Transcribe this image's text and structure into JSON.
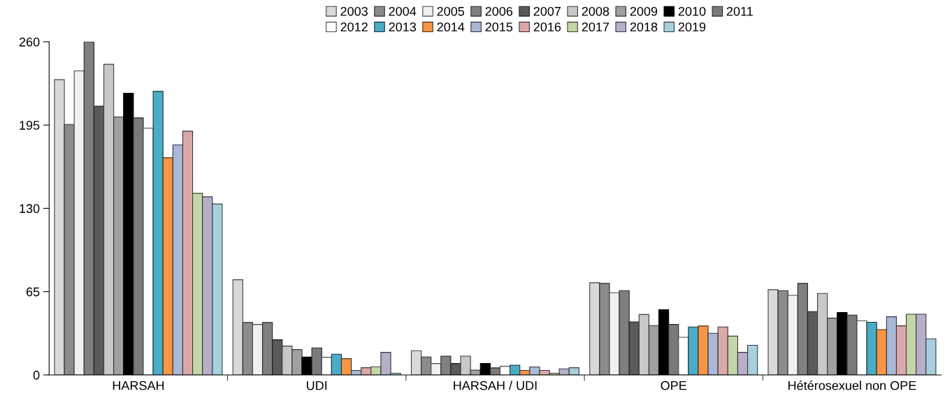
{
  "chart_data": {
    "type": "bar",
    "categories": [
      "HARSAH",
      "UDI",
      "HARSAH / UDI",
      "OPE",
      "Hétérosexuel non OPE"
    ],
    "ylim": [
      0,
      260
    ],
    "yticks": [
      0,
      65,
      130,
      195,
      260
    ],
    "grid": false,
    "legend": "top",
    "series": [
      {
        "name": "2003",
        "color": "#d9d9d9",
        "values": [
          230.4,
          74.3,
          18.9,
          72,
          66.5
        ]
      },
      {
        "name": "2004",
        "color": "#8c8c8c",
        "values": [
          195.5,
          40.9,
          14,
          71.4,
          65.8
        ]
      },
      {
        "name": "2005",
        "color": "#f0f0f0",
        "values": [
          237.3,
          39.4,
          8.9,
          64.1,
          62.1
        ]
      },
      {
        "name": "2006",
        "color": "#808080",
        "values": [
          260,
          40.9,
          14.7,
          65.8,
          71.4
        ]
      },
      {
        "name": "2007",
        "color": "#5a5a5a",
        "values": [
          209.7,
          27.4,
          8.9,
          41.4,
          49.4
        ]
      },
      {
        "name": "2008",
        "color": "#c8c8c8",
        "values": [
          242.4,
          22.5,
          14.7,
          47.2,
          63.6
        ]
      },
      {
        "name": "2009",
        "color": "#a0a0a0",
        "values": [
          201.3,
          19.8,
          3.8,
          38.5,
          44.3
        ]
      },
      {
        "name": "2010",
        "color": "#000000",
        "values": [
          219.8,
          14,
          8.9,
          50.9,
          48.7
        ]
      },
      {
        "name": "2011",
        "color": "#7a7a7a",
        "values": [
          200.6,
          21.1,
          5.5,
          39.4,
          46.7
        ]
      },
      {
        "name": "2012",
        "color": "#ffffff",
        "values": [
          192.6,
          13.8,
          6.7,
          29.4,
          42.2
        ]
      },
      {
        "name": "2013",
        "color": "#4bacc6",
        "values": [
          221.3,
          16.2,
          7.6,
          37.4,
          41.1
        ]
      },
      {
        "name": "2014",
        "color": "#f79646",
        "values": [
          169.5,
          12.7,
          3.5,
          38.2,
          35.4
        ]
      },
      {
        "name": "2015",
        "color": "#a9b8d6",
        "values": [
          179.5,
          3.5,
          6.2,
          32.5,
          45.4
        ]
      },
      {
        "name": "2016",
        "color": "#d9a9a9",
        "values": [
          190.2,
          5.6,
          3.5,
          37.4,
          38.3
        ]
      },
      {
        "name": "2017",
        "color": "#c4d6a8",
        "values": [
          141.7,
          6.4,
          1.3,
          30.3,
          47.4
        ]
      },
      {
        "name": "2018",
        "color": "#b7aeca",
        "values": [
          139,
          17.6,
          4.7,
          17.6,
          47.4
        ]
      },
      {
        "name": "2019",
        "color": "#a8cfdc",
        "values": [
          133.4,
          1.3,
          5.6,
          23.1,
          28.2
        ]
      }
    ]
  }
}
